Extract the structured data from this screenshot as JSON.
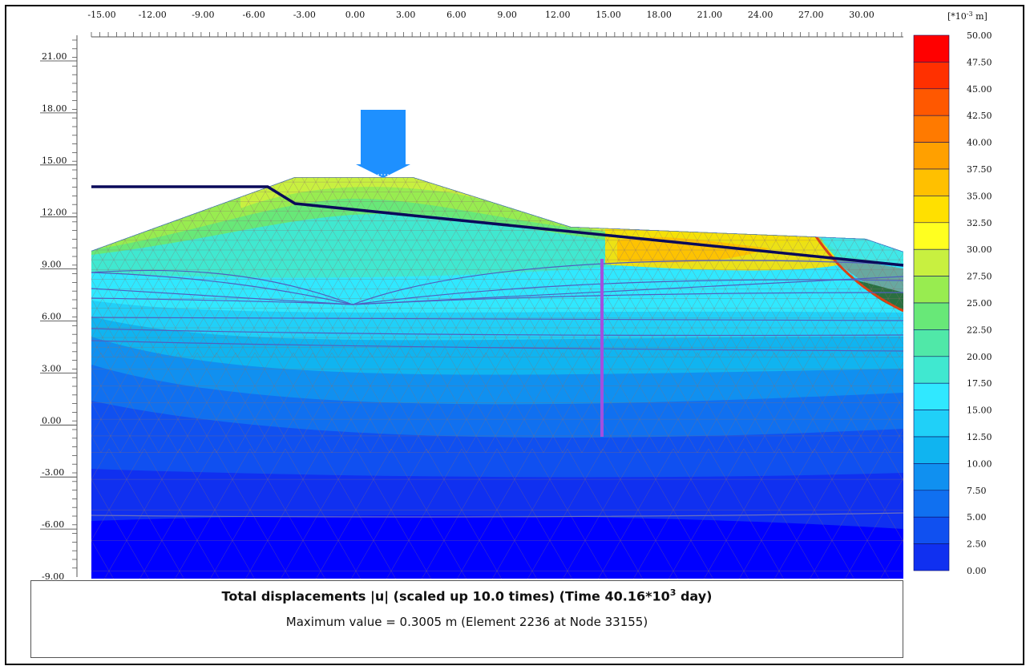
{
  "caption": {
    "title_main": "Total displacements |u| (scaled up 10.0 times) (Time 40.16*10",
    "title_exp": "3",
    "title_end": " day)",
    "subtitle": "Maximum value = 0.3005 m (Element 2236 at Node 33155)"
  },
  "axes": {
    "x_ticks": [
      "-15.00",
      "-12.00",
      "-9.00",
      "-6.00",
      "-3.00",
      "0.00",
      "3.00",
      "6.00",
      "9.00",
      "12.00",
      "15.00",
      "18.00",
      "21.00",
      "24.00",
      "27.00",
      "30.00"
    ],
    "y_ticks": [
      "21.00",
      "18.00",
      "15.00",
      "12.00",
      "9.00",
      "6.00",
      "3.00",
      "0.00",
      "-3.00",
      "-6.00",
      "-9.00"
    ]
  },
  "legend": {
    "unit_prefix": "[*10",
    "unit_exp": "-3",
    "unit_suffix": " m]",
    "labels": [
      "50.00",
      "47.50",
      "45.00",
      "42.50",
      "40.00",
      "37.50",
      "35.00",
      "32.50",
      "30.00",
      "27.50",
      "25.00",
      "22.50",
      "20.00",
      "17.50",
      "15.00",
      "12.50",
      "10.00",
      "7.50",
      "5.00",
      "2.50",
      "0.00"
    ],
    "colors": [
      "#ff0000",
      "#ff3000",
      "#ff5800",
      "#ff7a00",
      "#ffa000",
      "#ffc000",
      "#ffe000",
      "#ffff20",
      "#c8f040",
      "#98ec50",
      "#68e878",
      "#50e8a8",
      "#40e8d0",
      "#30e8ff",
      "#20d0f8",
      "#10b4f0",
      "#1090f0",
      "#1070f0",
      "#1050f0",
      "#1030f0",
      "#0000ff"
    ]
  },
  "model": {
    "load_label": "",
    "colors": {
      "water_line": "#0a0a5a",
      "wall": "#a050e0",
      "mesh": "#8a7070",
      "geometry": "#5060c0"
    }
  }
}
